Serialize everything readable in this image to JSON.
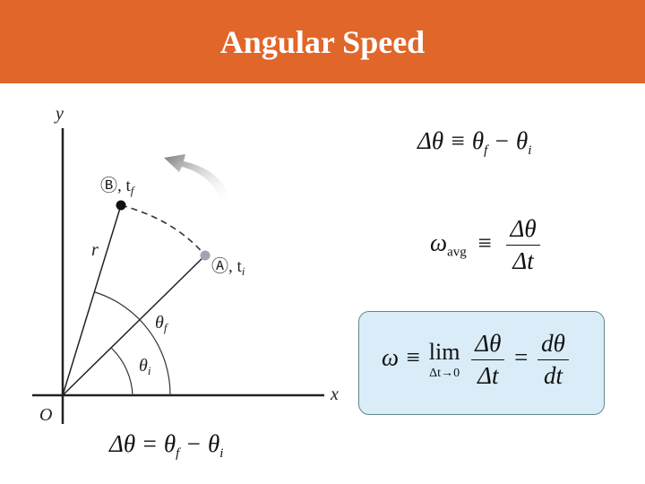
{
  "slide": {
    "title": "Angular Speed"
  },
  "diagram": {
    "label_y": "y",
    "label_x": "x",
    "label_origin": "O",
    "label_r": "r",
    "label_A": "Ⓐ, t",
    "label_A_sub": "i",
    "label_B": "Ⓑ, t",
    "label_B_sub": "f",
    "label_theta_f": "θ",
    "label_theta_f_sub": "f",
    "label_theta_i": "θ",
    "label_theta_i_sub": "i"
  },
  "equations": {
    "displacement_top": {
      "lhs": "Δθ ≡ θ",
      "sub1": "f",
      "mid": " − θ",
      "sub2": "i"
    },
    "average": {
      "omega": "ω",
      "sub": "avg",
      "op": "≡",
      "num": "Δθ",
      "den": "Δt"
    },
    "instantaneous": {
      "lhs": "ω ≡",
      "lim": "lim",
      "lim_sub": "Δt→0",
      "frac1_num": "Δθ",
      "frac1_den": "Δt",
      "eq": "=",
      "frac2_num": "dθ",
      "frac2_den": "dt"
    },
    "displacement_bottom": {
      "lhs": "Δθ = θ",
      "sub1": "f",
      "mid": " − θ",
      "sub2": "i"
    }
  }
}
